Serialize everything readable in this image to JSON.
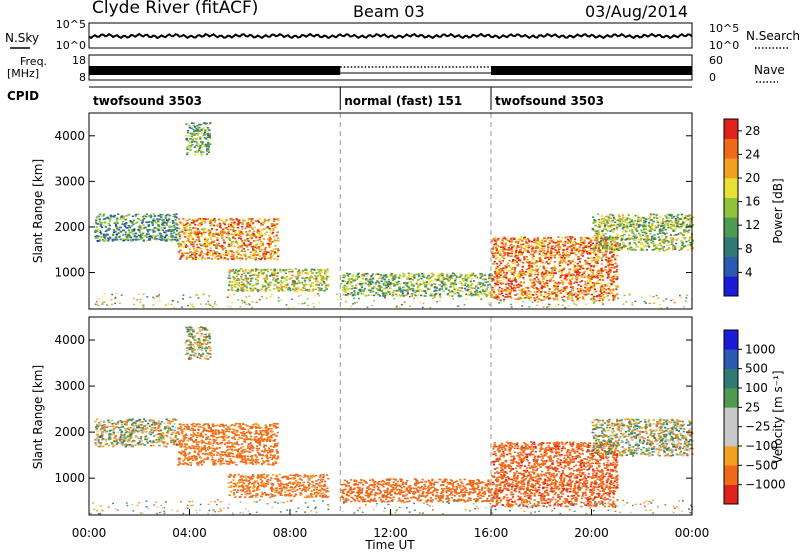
{
  "header": {
    "station": "Clyde River (fitACF)",
    "beam": "Beam 03",
    "date": "03/Aug/2014"
  },
  "noise_panel": {
    "left_label": "N.Sky",
    "right_label": "N.Search",
    "left_ticks": [
      "10^5",
      "10^0"
    ],
    "right_ticks": [
      "10^5",
      "10^0"
    ]
  },
  "freq_panel": {
    "left_label_1": "Freq.",
    "left_label_2": "[MHz]",
    "right_label": "Nave",
    "left_ticks": [
      "18",
      "8"
    ],
    "right_ticks": [
      "60",
      "0"
    ]
  },
  "cpid_panel": {
    "label": "CPID",
    "segments": [
      {
        "name": "twofsound 3503",
        "start_hour": 0,
        "end_hour": 10
      },
      {
        "name": "normal (fast) 151",
        "start_hour": 10,
        "end_hour": 16
      },
      {
        "name": "twofsound 3503",
        "start_hour": 16,
        "end_hour": 24
      }
    ]
  },
  "chart_data": [
    {
      "type": "heatmap",
      "title": "",
      "xlabel": "",
      "ylabel": "Slant Range [km]",
      "xlim": [
        0,
        24
      ],
      "ylim": [
        200,
        4500
      ],
      "yticks": [
        "1000",
        "2000",
        "3000",
        "4000"
      ],
      "colorbar": {
        "label": "Power [dB]",
        "ticks": [
          "4",
          "8",
          "12",
          "16",
          "20",
          "24",
          "28"
        ],
        "range": [
          0,
          30
        ],
        "colors": [
          "#1b1bd8",
          "#2a5bb0",
          "#2f7a72",
          "#4f9a50",
          "#8fc23a",
          "#e8e035",
          "#f2a020",
          "#ef6a18",
          "#e0231a"
        ]
      },
      "echo_bands": [
        {
          "start_hour": 0.2,
          "end_hour": 3.5,
          "range_min": 1700,
          "range_max": 2300,
          "level": 0.35
        },
        {
          "start_hour": 3.5,
          "end_hour": 7.5,
          "range_min": 1300,
          "range_max": 2200,
          "level": 0.75
        },
        {
          "start_hour": 5.5,
          "end_hour": 9.5,
          "range_min": 600,
          "range_max": 1100,
          "level": 0.55
        },
        {
          "start_hour": 10,
          "end_hour": 16,
          "range_min": 500,
          "range_max": 1000,
          "level": 0.45
        },
        {
          "start_hour": 16,
          "end_hour": 21,
          "range_min": 400,
          "range_max": 1800,
          "level": 0.8
        },
        {
          "start_hour": 20,
          "end_hour": 24,
          "range_min": 1500,
          "range_max": 2300,
          "level": 0.5
        },
        {
          "start_hour": 3.8,
          "end_hour": 4.8,
          "range_min": 3600,
          "range_max": 4300,
          "level": 0.4
        }
      ]
    },
    {
      "type": "heatmap",
      "title": "",
      "xlabel": "Time UT",
      "ylabel": "Slant Range [km]",
      "xlim": [
        0,
        24
      ],
      "ylim": [
        200,
        4500
      ],
      "xticks": [
        "00:00",
        "04:00",
        "08:00",
        "12:00",
        "16:00",
        "20:00",
        "00:00"
      ],
      "yticks": [
        "1000",
        "2000",
        "3000",
        "4000"
      ],
      "colorbar": {
        "label": "Velocity [m s⁻¹]",
        "ticks": [
          "1000",
          "500",
          "100",
          "25",
          "−25",
          "−100",
          "−500",
          "−1000"
        ],
        "range": [
          -1000,
          1000
        ],
        "colors": [
          "#e0231a",
          "#ef6a18",
          "#f2a020",
          "#c8c8c8",
          "#c8c8c8",
          "#4f9a50",
          "#2f7a72",
          "#2a5bb0",
          "#1b1bd8"
        ]
      },
      "echo_bands": [
        {
          "start_hour": 0.2,
          "end_hour": 3.5,
          "range_min": 1700,
          "range_max": 2300,
          "velocity": 0
        },
        {
          "start_hour": 3.5,
          "end_hour": 7.5,
          "range_min": 1300,
          "range_max": 2200,
          "velocity": -200
        },
        {
          "start_hour": 5.5,
          "end_hour": 9.5,
          "range_min": 600,
          "range_max": 1100,
          "velocity": -150
        },
        {
          "start_hour": 10,
          "end_hour": 16,
          "range_min": 500,
          "range_max": 1000,
          "velocity": -300
        },
        {
          "start_hour": 16,
          "end_hour": 21,
          "range_min": 400,
          "range_max": 1800,
          "velocity": -400
        },
        {
          "start_hour": 20,
          "end_hour": 24,
          "range_min": 1500,
          "range_max": 2300,
          "velocity": 0
        },
        {
          "start_hour": 3.8,
          "end_hour": 4.8,
          "range_min": 3600,
          "range_max": 4300,
          "velocity": 0
        }
      ]
    }
  ]
}
